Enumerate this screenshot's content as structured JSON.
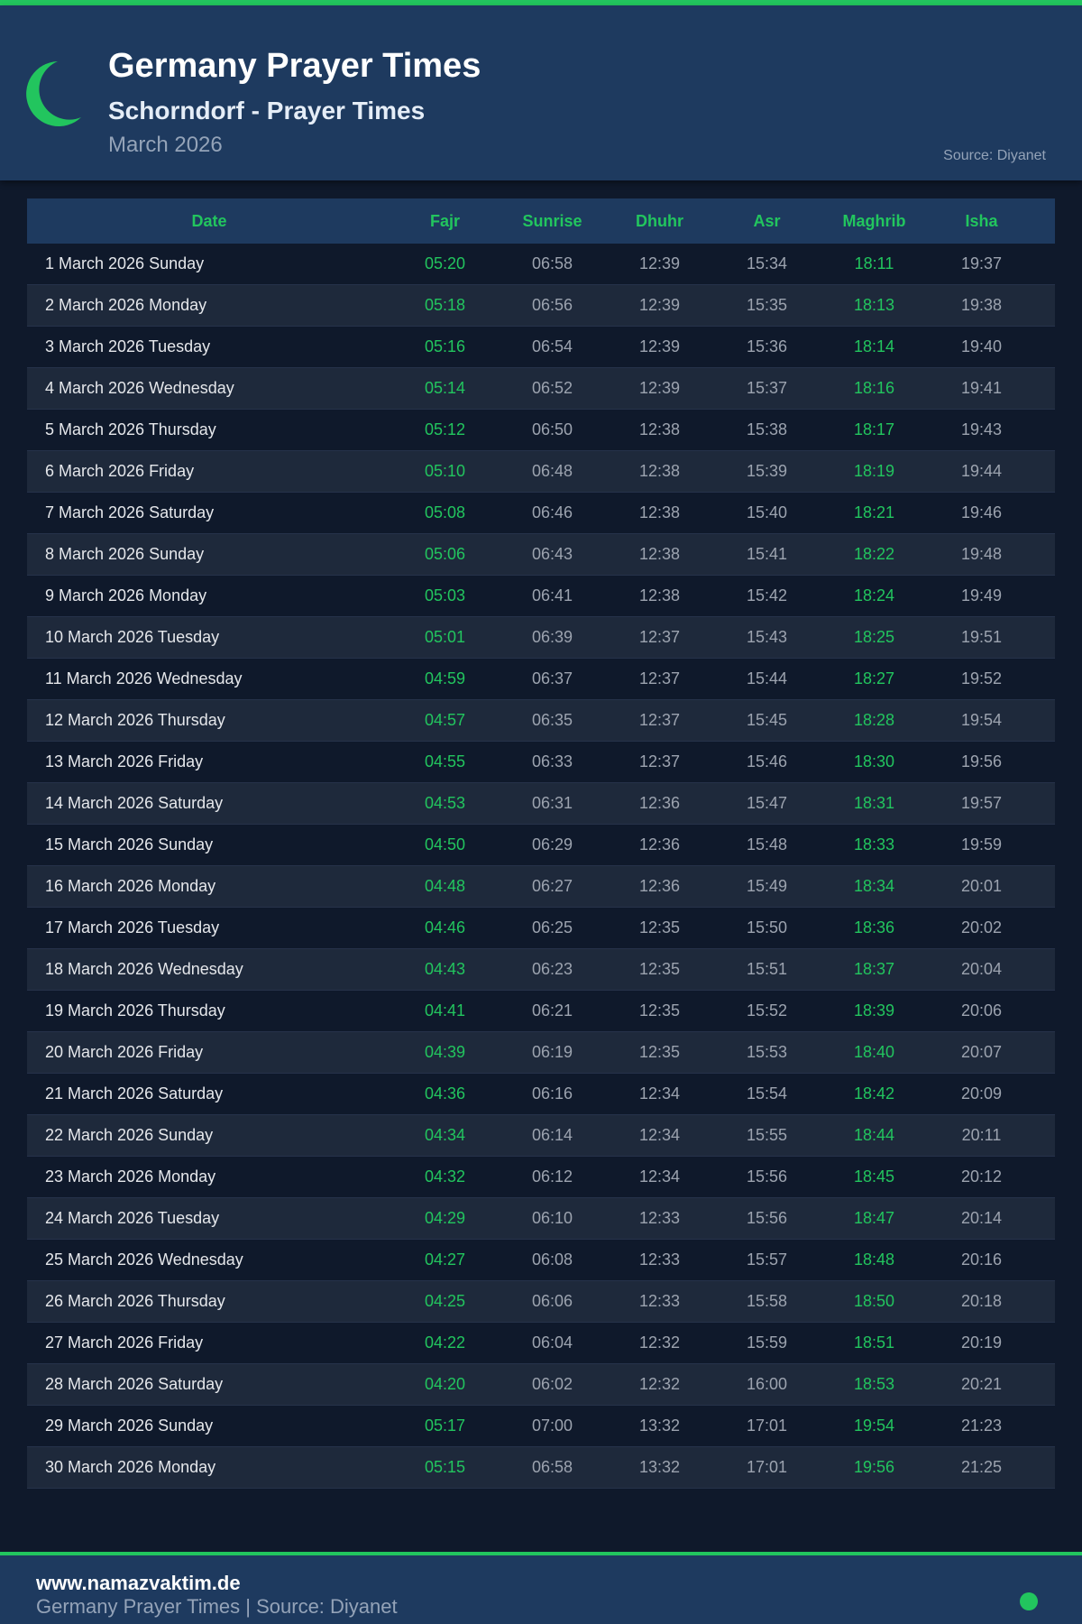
{
  "header": {
    "title": "Germany Prayer Times",
    "subtitle": "Schorndorf - Prayer Times",
    "month": "March 2026",
    "source": "Source: Diyanet"
  },
  "colors": {
    "accent": "#22c55e",
    "header_bg": "#1e3a5f",
    "page_bg": "#0f192b"
  },
  "table": {
    "columns": [
      "Date",
      "Fajr",
      "Sunrise",
      "Dhuhr",
      "Asr",
      "Maghrib",
      "Isha"
    ],
    "rows": [
      [
        "1 March 2026 Sunday",
        "05:20",
        "06:58",
        "12:39",
        "15:34",
        "18:11",
        "19:37"
      ],
      [
        "2 March 2026 Monday",
        "05:18",
        "06:56",
        "12:39",
        "15:35",
        "18:13",
        "19:38"
      ],
      [
        "3 March 2026 Tuesday",
        "05:16",
        "06:54",
        "12:39",
        "15:36",
        "18:14",
        "19:40"
      ],
      [
        "4 March 2026 Wednesday",
        "05:14",
        "06:52",
        "12:39",
        "15:37",
        "18:16",
        "19:41"
      ],
      [
        "5 March 2026 Thursday",
        "05:12",
        "06:50",
        "12:38",
        "15:38",
        "18:17",
        "19:43"
      ],
      [
        "6 March 2026 Friday",
        "05:10",
        "06:48",
        "12:38",
        "15:39",
        "18:19",
        "19:44"
      ],
      [
        "7 March 2026 Saturday",
        "05:08",
        "06:46",
        "12:38",
        "15:40",
        "18:21",
        "19:46"
      ],
      [
        "8 March 2026 Sunday",
        "05:06",
        "06:43",
        "12:38",
        "15:41",
        "18:22",
        "19:48"
      ],
      [
        "9 March 2026 Monday",
        "05:03",
        "06:41",
        "12:38",
        "15:42",
        "18:24",
        "19:49"
      ],
      [
        "10 March 2026 Tuesday",
        "05:01",
        "06:39",
        "12:37",
        "15:43",
        "18:25",
        "19:51"
      ],
      [
        "11 March 2026 Wednesday",
        "04:59",
        "06:37",
        "12:37",
        "15:44",
        "18:27",
        "19:52"
      ],
      [
        "12 March 2026 Thursday",
        "04:57",
        "06:35",
        "12:37",
        "15:45",
        "18:28",
        "19:54"
      ],
      [
        "13 March 2026 Friday",
        "04:55",
        "06:33",
        "12:37",
        "15:46",
        "18:30",
        "19:56"
      ],
      [
        "14 March 2026 Saturday",
        "04:53",
        "06:31",
        "12:36",
        "15:47",
        "18:31",
        "19:57"
      ],
      [
        "15 March 2026 Sunday",
        "04:50",
        "06:29",
        "12:36",
        "15:48",
        "18:33",
        "19:59"
      ],
      [
        "16 March 2026 Monday",
        "04:48",
        "06:27",
        "12:36",
        "15:49",
        "18:34",
        "20:01"
      ],
      [
        "17 March 2026 Tuesday",
        "04:46",
        "06:25",
        "12:35",
        "15:50",
        "18:36",
        "20:02"
      ],
      [
        "18 March 2026 Wednesday",
        "04:43",
        "06:23",
        "12:35",
        "15:51",
        "18:37",
        "20:04"
      ],
      [
        "19 March 2026 Thursday",
        "04:41",
        "06:21",
        "12:35",
        "15:52",
        "18:39",
        "20:06"
      ],
      [
        "20 March 2026 Friday",
        "04:39",
        "06:19",
        "12:35",
        "15:53",
        "18:40",
        "20:07"
      ],
      [
        "21 March 2026 Saturday",
        "04:36",
        "06:16",
        "12:34",
        "15:54",
        "18:42",
        "20:09"
      ],
      [
        "22 March 2026 Sunday",
        "04:34",
        "06:14",
        "12:34",
        "15:55",
        "18:44",
        "20:11"
      ],
      [
        "23 March 2026 Monday",
        "04:32",
        "06:12",
        "12:34",
        "15:56",
        "18:45",
        "20:12"
      ],
      [
        "24 March 2026 Tuesday",
        "04:29",
        "06:10",
        "12:33",
        "15:56",
        "18:47",
        "20:14"
      ],
      [
        "25 March 2026 Wednesday",
        "04:27",
        "06:08",
        "12:33",
        "15:57",
        "18:48",
        "20:16"
      ],
      [
        "26 March 2026 Thursday",
        "04:25",
        "06:06",
        "12:33",
        "15:58",
        "18:50",
        "20:18"
      ],
      [
        "27 March 2026 Friday",
        "04:22",
        "06:04",
        "12:32",
        "15:59",
        "18:51",
        "20:19"
      ],
      [
        "28 March 2026 Saturday",
        "04:20",
        "06:02",
        "12:32",
        "16:00",
        "18:53",
        "20:21"
      ],
      [
        "29 March 2026 Sunday",
        "05:17",
        "07:00",
        "13:32",
        "17:01",
        "19:54",
        "21:23"
      ],
      [
        "30 March 2026 Monday",
        "05:15",
        "06:58",
        "13:32",
        "17:01",
        "19:56",
        "21:25"
      ]
    ]
  },
  "footer": {
    "site": "www.namazvaktim.de",
    "tagline": "Germany Prayer Times | Source: Diyanet"
  }
}
